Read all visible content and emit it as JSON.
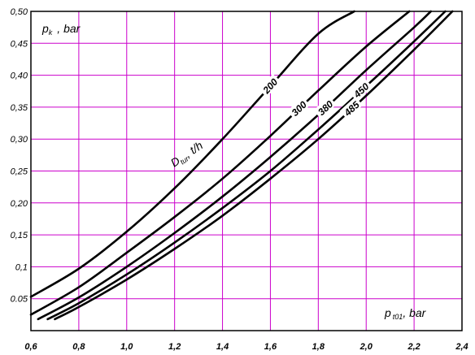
{
  "chart_data": {
    "type": "line",
    "xlabel": {
      "main": "p",
      "sub": "t01",
      "unit": ", bar"
    },
    "ylabel": {
      "main": "p",
      "sub": "k",
      "unit": ", bar"
    },
    "series_group_label": {
      "main": "D",
      "sub": "tur",
      "unit": ", t/h"
    },
    "xlim": [
      0.6,
      2.4
    ],
    "ylim": [
      0.0,
      0.5
    ],
    "x_ticks": [
      "0,6",
      "0,8",
      "1,0",
      "1,2",
      "1,4",
      "1,6",
      "1,8",
      "2,0",
      "2,2",
      "2,4"
    ],
    "y_ticks": [
      "0.05",
      "0,1",
      "0,15",
      "0,20",
      "0,25",
      "0,30",
      "0,35",
      "0,40",
      "0,45",
      "0,50"
    ],
    "grid": true,
    "colors": {
      "grid": "#cc00cc",
      "line": "#000000",
      "background": "#ffffff"
    },
    "series": [
      {
        "name": "200",
        "x": [
          0.6,
          0.8,
          1.0,
          1.2,
          1.4,
          1.6,
          1.8,
          1.95
        ],
        "y": [
          0.053,
          0.097,
          0.155,
          0.223,
          0.3,
          0.383,
          0.465,
          0.5
        ]
      },
      {
        "name": "300",
        "x": [
          0.6,
          0.8,
          1.0,
          1.2,
          1.4,
          1.6,
          1.8,
          2.0,
          2.18
        ],
        "y": [
          0.025,
          0.068,
          0.122,
          0.178,
          0.238,
          0.305,
          0.376,
          0.445,
          0.5
        ]
      },
      {
        "name": "380",
        "x": [
          0.63,
          0.8,
          1.0,
          1.2,
          1.4,
          1.6,
          1.8,
          2.0,
          2.2,
          2.27
        ],
        "y": [
          0.018,
          0.052,
          0.1,
          0.153,
          0.21,
          0.272,
          0.338,
          0.408,
          0.475,
          0.5
        ]
      },
      {
        "name": "450",
        "x": [
          0.67,
          0.8,
          1.0,
          1.2,
          1.4,
          1.6,
          1.8,
          2.0,
          2.2,
          2.33
        ],
        "y": [
          0.018,
          0.043,
          0.088,
          0.138,
          0.192,
          0.25,
          0.315,
          0.383,
          0.453,
          0.5
        ]
      },
      {
        "name": "485",
        "x": [
          0.7,
          0.8,
          1.0,
          1.2,
          1.4,
          1.6,
          1.8,
          2.0,
          2.2,
          2.36
        ],
        "y": [
          0.018,
          0.037,
          0.08,
          0.128,
          0.18,
          0.238,
          0.3,
          0.368,
          0.44,
          0.5
        ]
      }
    ],
    "series_labels": [
      {
        "name": "200",
        "at_x": 1.6
      },
      {
        "name": "300",
        "at_x": 1.72
      },
      {
        "name": "380",
        "at_x": 1.83
      },
      {
        "name": "450",
        "at_x": 1.98
      },
      {
        "name": "485",
        "at_x": 1.94
      }
    ]
  }
}
